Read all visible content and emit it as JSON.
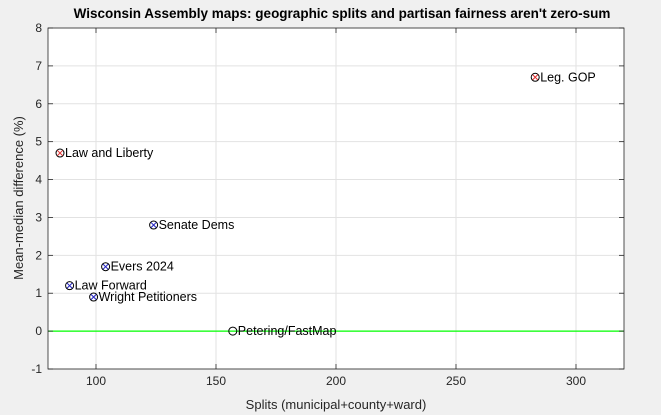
{
  "chart_data": {
    "type": "scatter",
    "title": "Wisconsin Assembly maps: geographic splits and partisan fairness aren't zero-sum",
    "xlabel": "Splits (municipal+county+ward)",
    "ylabel": "Mean-median difference (%)",
    "xlim": [
      80,
      320
    ],
    "ylim": [
      -1,
      8
    ],
    "xticks": [
      100,
      150,
      200,
      250,
      300
    ],
    "yticks": [
      -1,
      0,
      1,
      2,
      3,
      4,
      5,
      6,
      7,
      8
    ],
    "grid": true,
    "reference_line": {
      "y": 0,
      "color": "#00ff00"
    },
    "colors": {
      "gop": "#e03030",
      "dem": "#2020c0",
      "neutral": "#000000",
      "axes_background": "#ffffff",
      "figure_background": "#f0f0f0",
      "grid": "#e2e2e2"
    },
    "points": [
      {
        "label": "Leg. GOP",
        "x": 283,
        "y": 6.7,
        "group": "gop"
      },
      {
        "label": "Law and Liberty",
        "x": 85,
        "y": 4.7,
        "group": "gop"
      },
      {
        "label": "Senate Dems",
        "x": 124,
        "y": 2.8,
        "group": "dem"
      },
      {
        "label": "Evers 2024",
        "x": 104,
        "y": 1.7,
        "group": "dem"
      },
      {
        "label": "Law Forward",
        "x": 89,
        "y": 1.2,
        "group": "dem"
      },
      {
        "label": "Wright Petitioners",
        "x": 99,
        "y": 0.9,
        "group": "dem"
      },
      {
        "label": "Petering/FastMap",
        "x": 157,
        "y": 0.0,
        "group": "neutral"
      }
    ]
  }
}
